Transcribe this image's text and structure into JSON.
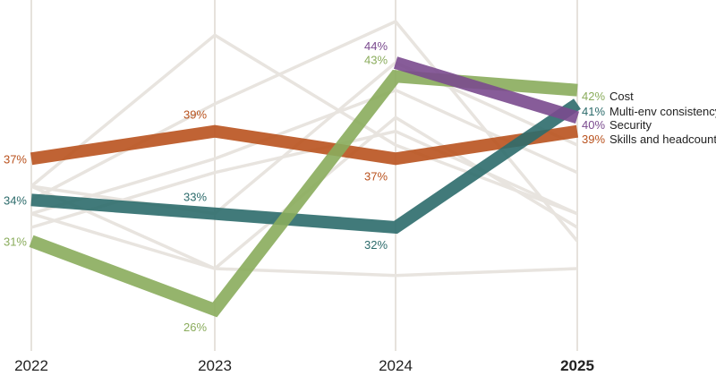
{
  "chart_data": {
    "type": "line",
    "title": "",
    "xlabel": "",
    "ylabel": "",
    "ylim": [
      23,
      47
    ],
    "x": [
      "2022",
      "2023",
      "2024",
      "2025"
    ],
    "x_bold": [
      false,
      false,
      false,
      true
    ],
    "grid": "vertical",
    "background_series": {
      "color": "#e8e4df",
      "series": [
        {
          "values": [
            35,
            46,
            38,
            33
          ]
        },
        {
          "values": [
            34,
            41,
            47,
            31
          ]
        },
        {
          "values": [
            33,
            37,
            42,
            36
          ]
        },
        {
          "values": [
            35,
            29,
            40,
            32
          ]
        },
        {
          "values": [
            32,
            36,
            39,
            33
          ]
        },
        {
          "values": [
            35,
            33,
            44,
            38
          ]
        },
        {
          "values": [
            33,
            29,
            28.5,
            29
          ]
        }
      ]
    },
    "series": [
      {
        "name": "Cost",
        "color": "#8aac5c",
        "values": [
          31,
          26,
          43,
          42
        ],
        "labels": [
          "31%",
          "26%",
          "43%",
          "42%"
        ],
        "label_pos": [
          "left",
          "below",
          "above",
          "right"
        ]
      },
      {
        "name": "Multi-env consistency",
        "color": "#2c6b6b",
        "values": [
          34,
          33,
          32,
          41
        ],
        "labels": [
          "34%",
          "33%",
          "32%",
          "41%"
        ],
        "label_pos": [
          "left",
          "above",
          "below",
          "right"
        ]
      },
      {
        "name": "Security",
        "color": "#7a4a8e",
        "values": [
          null,
          null,
          44,
          40
        ],
        "labels": [
          null,
          null,
          "44%",
          "40%"
        ],
        "label_pos": [
          null,
          null,
          "above",
          "right"
        ]
      },
      {
        "name": "Skills and headcount",
        "color": "#b9521e",
        "values": [
          37,
          39,
          37,
          39
        ],
        "labels": [
          "37%",
          "39%",
          "37%",
          "39%"
        ],
        "label_pos": [
          "left",
          "above",
          "below",
          "right"
        ]
      }
    ]
  }
}
